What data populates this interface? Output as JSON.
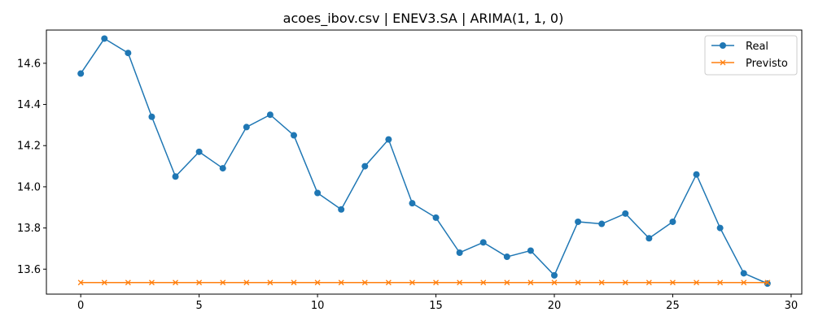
{
  "chart_data": {
    "type": "line",
    "title": "acoes_ibov.csv | ENEV3.SA | ARIMA(1, 1, 0)",
    "xlabel": "",
    "ylabel": "",
    "xlim": [
      -1.45,
      30.45
    ],
    "ylim": [
      13.4787,
      14.7613
    ],
    "x_ticks": [
      0,
      5,
      10,
      15,
      20,
      25,
      30
    ],
    "y_ticks": [
      13.6,
      13.8,
      14.0,
      14.2,
      14.4,
      14.6
    ],
    "y_tick_labels": [
      "13.6",
      "13.8",
      "14.0",
      "14.2",
      "14.4",
      "14.6"
    ],
    "legend_position": "top-right",
    "grid": false,
    "x": [
      0,
      1,
      2,
      3,
      4,
      5,
      6,
      7,
      8,
      9,
      10,
      11,
      12,
      13,
      14,
      15,
      16,
      17,
      18,
      19,
      20,
      21,
      22,
      23,
      24,
      25,
      26,
      27,
      28,
      29
    ],
    "series": [
      {
        "name": "Real",
        "color": "#1f77b4",
        "marker": "circle",
        "values": [
          14.55,
          14.72,
          14.65,
          14.34,
          14.05,
          14.17,
          14.09,
          14.29,
          14.35,
          14.25,
          13.97,
          13.89,
          14.1,
          14.23,
          13.92,
          13.85,
          13.68,
          13.73,
          13.66,
          13.69,
          13.57,
          13.83,
          13.82,
          13.87,
          13.75,
          13.83,
          14.06,
          13.8,
          13.58,
          13.53
        ]
      },
      {
        "name": "Previsto",
        "color": "#ff7f0e",
        "marker": "x",
        "values": [
          13.535,
          13.535,
          13.535,
          13.535,
          13.535,
          13.535,
          13.535,
          13.535,
          13.535,
          13.535,
          13.535,
          13.535,
          13.535,
          13.535,
          13.535,
          13.535,
          13.535,
          13.535,
          13.535,
          13.535,
          13.535,
          13.535,
          13.535,
          13.535,
          13.535,
          13.535,
          13.535,
          13.535,
          13.535,
          13.535
        ]
      }
    ]
  }
}
